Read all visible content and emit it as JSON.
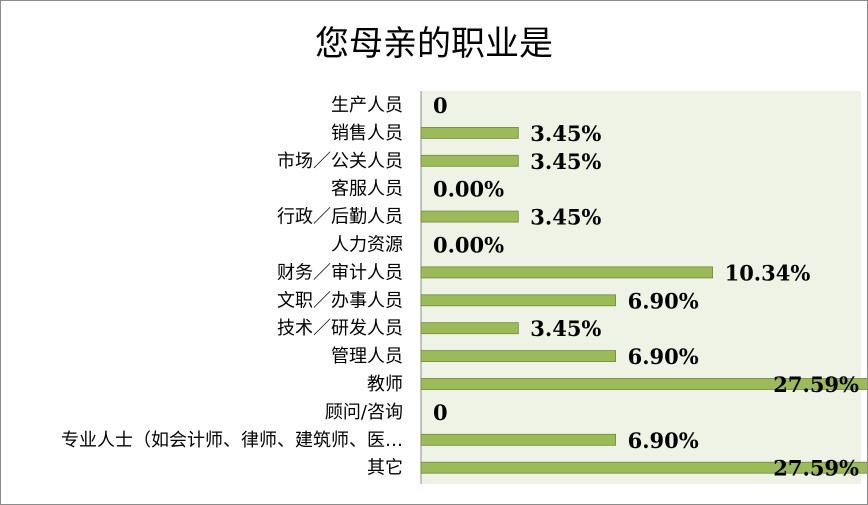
{
  "chart_data": {
    "type": "bar",
    "orientation": "horizontal",
    "title": "您母亲的职业是",
    "categories": [
      "生产人员",
      "销售人员",
      "市场／公关人员",
      "客服人员",
      "行政／后勤人员",
      "人力资源",
      "财务／审计人员",
      "文职／办事人员",
      "技术／研发人员",
      "管理人员",
      "教师",
      "顾问/咨询",
      "专业人士（如会计师、律师、建筑师、医…",
      "其它"
    ],
    "values": [
      0,
      3.45,
      3.45,
      0.0,
      3.45,
      0.0,
      10.34,
      6.9,
      3.45,
      6.9,
      27.59,
      0,
      6.9,
      27.59
    ],
    "data_labels": [
      "0",
      "3.45%",
      "3.45%",
      "0.00%",
      "3.45%",
      "0.00%",
      "10.34%",
      "6.90%",
      "3.45%",
      "6.90%",
      "27.59%",
      "0",
      "6.90%",
      "27.59%"
    ],
    "xlim": [
      0,
      30
    ],
    "grid": false,
    "legend": "none",
    "colors": {
      "bar_fill": "#9bbb59",
      "bar_stroke": "#71893f",
      "plot_background": "#eef3e6",
      "axis": "#8c8c8c"
    }
  }
}
